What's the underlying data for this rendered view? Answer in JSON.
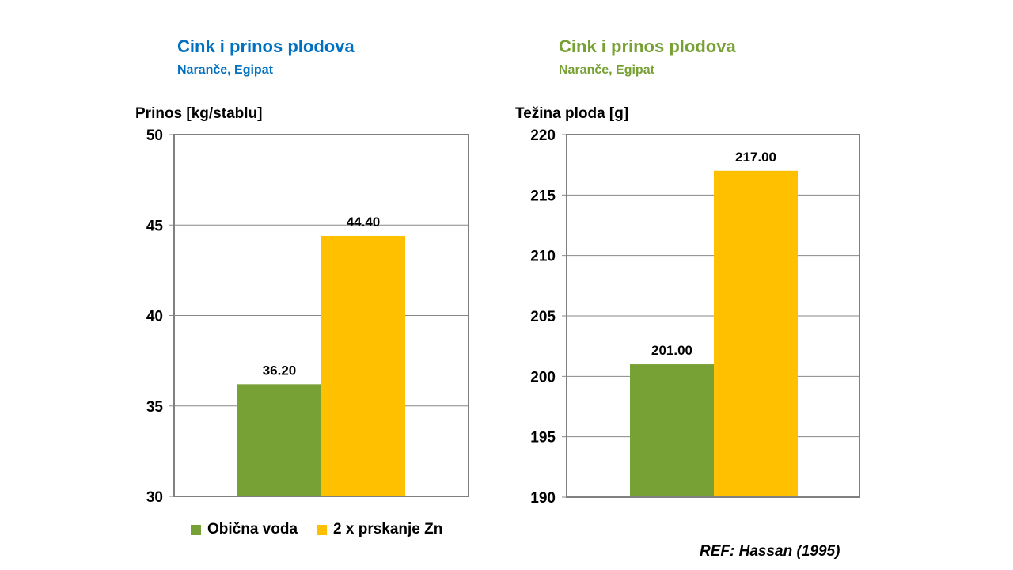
{
  "colors": {
    "series1": "#77A135",
    "series2": "#FFC000",
    "title_left": "#0070C0",
    "title_right": "#77A135"
  },
  "legend": [
    "Obična voda",
    "2 x prskanje Zn"
  ],
  "reference": "REF: Hassan (1995)",
  "chart_data": [
    {
      "type": "bar",
      "title": "Cink i prinos plodova",
      "subtitle": "Naranče, Egipat",
      "ylabel": "Prinos [kg/stablu]",
      "ylim": [
        30,
        50
      ],
      "yticks": [
        30,
        35,
        40,
        45,
        50
      ],
      "grid": true,
      "series": [
        {
          "name": "Obična voda",
          "values": [
            36.2
          ],
          "labels": [
            "36.20"
          ]
        },
        {
          "name": "2 x prskanje Zn",
          "values": [
            44.4
          ],
          "labels": [
            "44.40"
          ]
        }
      ]
    },
    {
      "type": "bar",
      "title": "Cink i prinos plodova",
      "subtitle": "Naranče, Egipat",
      "ylabel": "Težina ploda [g]",
      "ylim": [
        190,
        220
      ],
      "yticks": [
        190,
        195,
        200,
        205,
        210,
        215,
        220
      ],
      "grid": true,
      "series": [
        {
          "name": "Obična voda",
          "values": [
            201.0
          ],
          "labels": [
            "201.00"
          ]
        },
        {
          "name": "2 x prskanje Zn",
          "values": [
            217.0
          ],
          "labels": [
            "217.00"
          ]
        }
      ]
    }
  ]
}
